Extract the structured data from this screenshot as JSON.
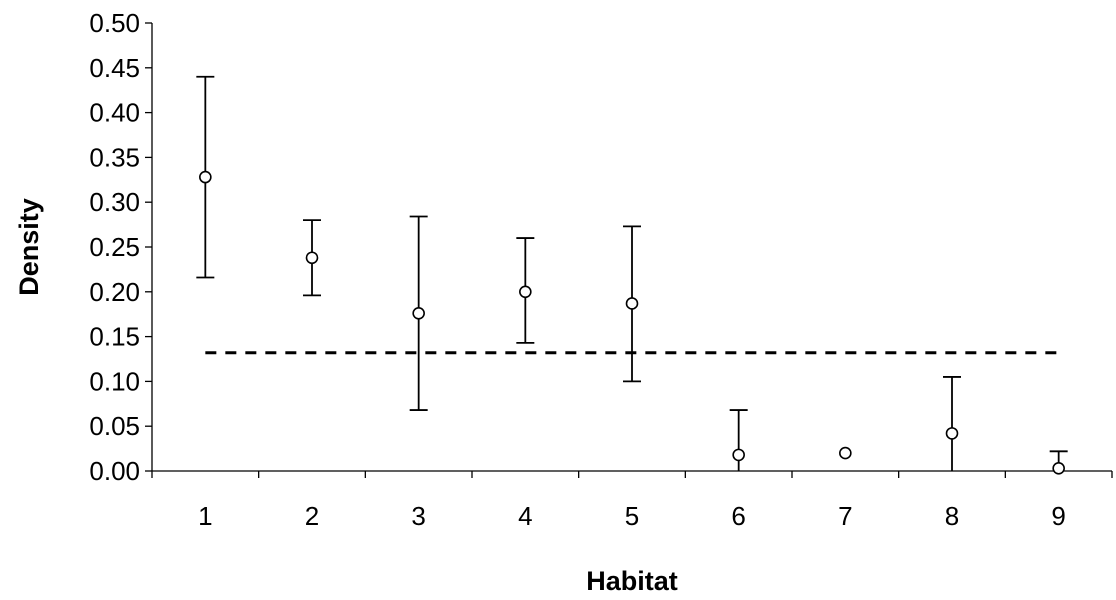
{
  "chart_data": {
    "type": "scatter",
    "title": "",
    "xlabel": "Habitat",
    "ylabel": "Density",
    "categories": [
      "1",
      "2",
      "3",
      "4",
      "5",
      "6",
      "7",
      "8",
      "9"
    ],
    "ylim": [
      0,
      0.5
    ],
    "yticks": [
      "0.00",
      "0.05",
      "0.10",
      "0.15",
      "0.20",
      "0.25",
      "0.30",
      "0.35",
      "0.40",
      "0.45",
      "0.50"
    ],
    "grid": false,
    "legend": "none",
    "series": [
      {
        "values": [
          0.328,
          0.238,
          0.176,
          0.2,
          0.187,
          0.018,
          0.02,
          0.042,
          0.003
        ],
        "error_upper": [
          0.44,
          0.28,
          0.284,
          0.26,
          0.273,
          0.068,
          null,
          0.105,
          0.022
        ],
        "error_lower": [
          0.216,
          0.196,
          0.068,
          0.143,
          0.1,
          0.0,
          null,
          0.0,
          0.0
        ]
      }
    ],
    "reference_line": {
      "y": 0.132,
      "style": "dashed",
      "x_from": "1",
      "x_to": "9"
    },
    "colors": {
      "marker_fill": "#ffffff",
      "marker_stroke": "#000000",
      "line": "#000000"
    }
  }
}
